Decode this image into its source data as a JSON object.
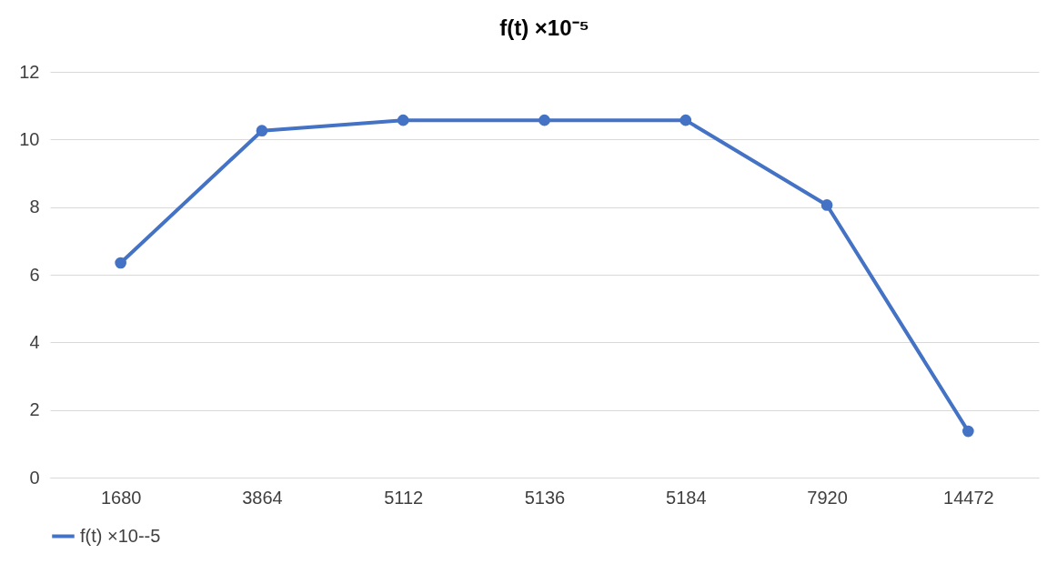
{
  "chart_data": {
    "type": "line",
    "title": "f(t) ×10⁻⁵",
    "categories": [
      "1680",
      "3864",
      "5112",
      "5136",
      "5184",
      "7920",
      "14472"
    ],
    "series": [
      {
        "name": "f(t) ×10--5",
        "color": "#4472c4",
        "values": [
          6.35,
          10.26,
          10.57,
          10.57,
          10.57,
          8.06,
          1.37
        ]
      }
    ],
    "ylim": [
      0,
      12
    ],
    "yticks": [
      0,
      2,
      4,
      6,
      8,
      10,
      12
    ],
    "grid": "y",
    "legend": "bottom",
    "marker": "circle",
    "line_style": "solid"
  }
}
